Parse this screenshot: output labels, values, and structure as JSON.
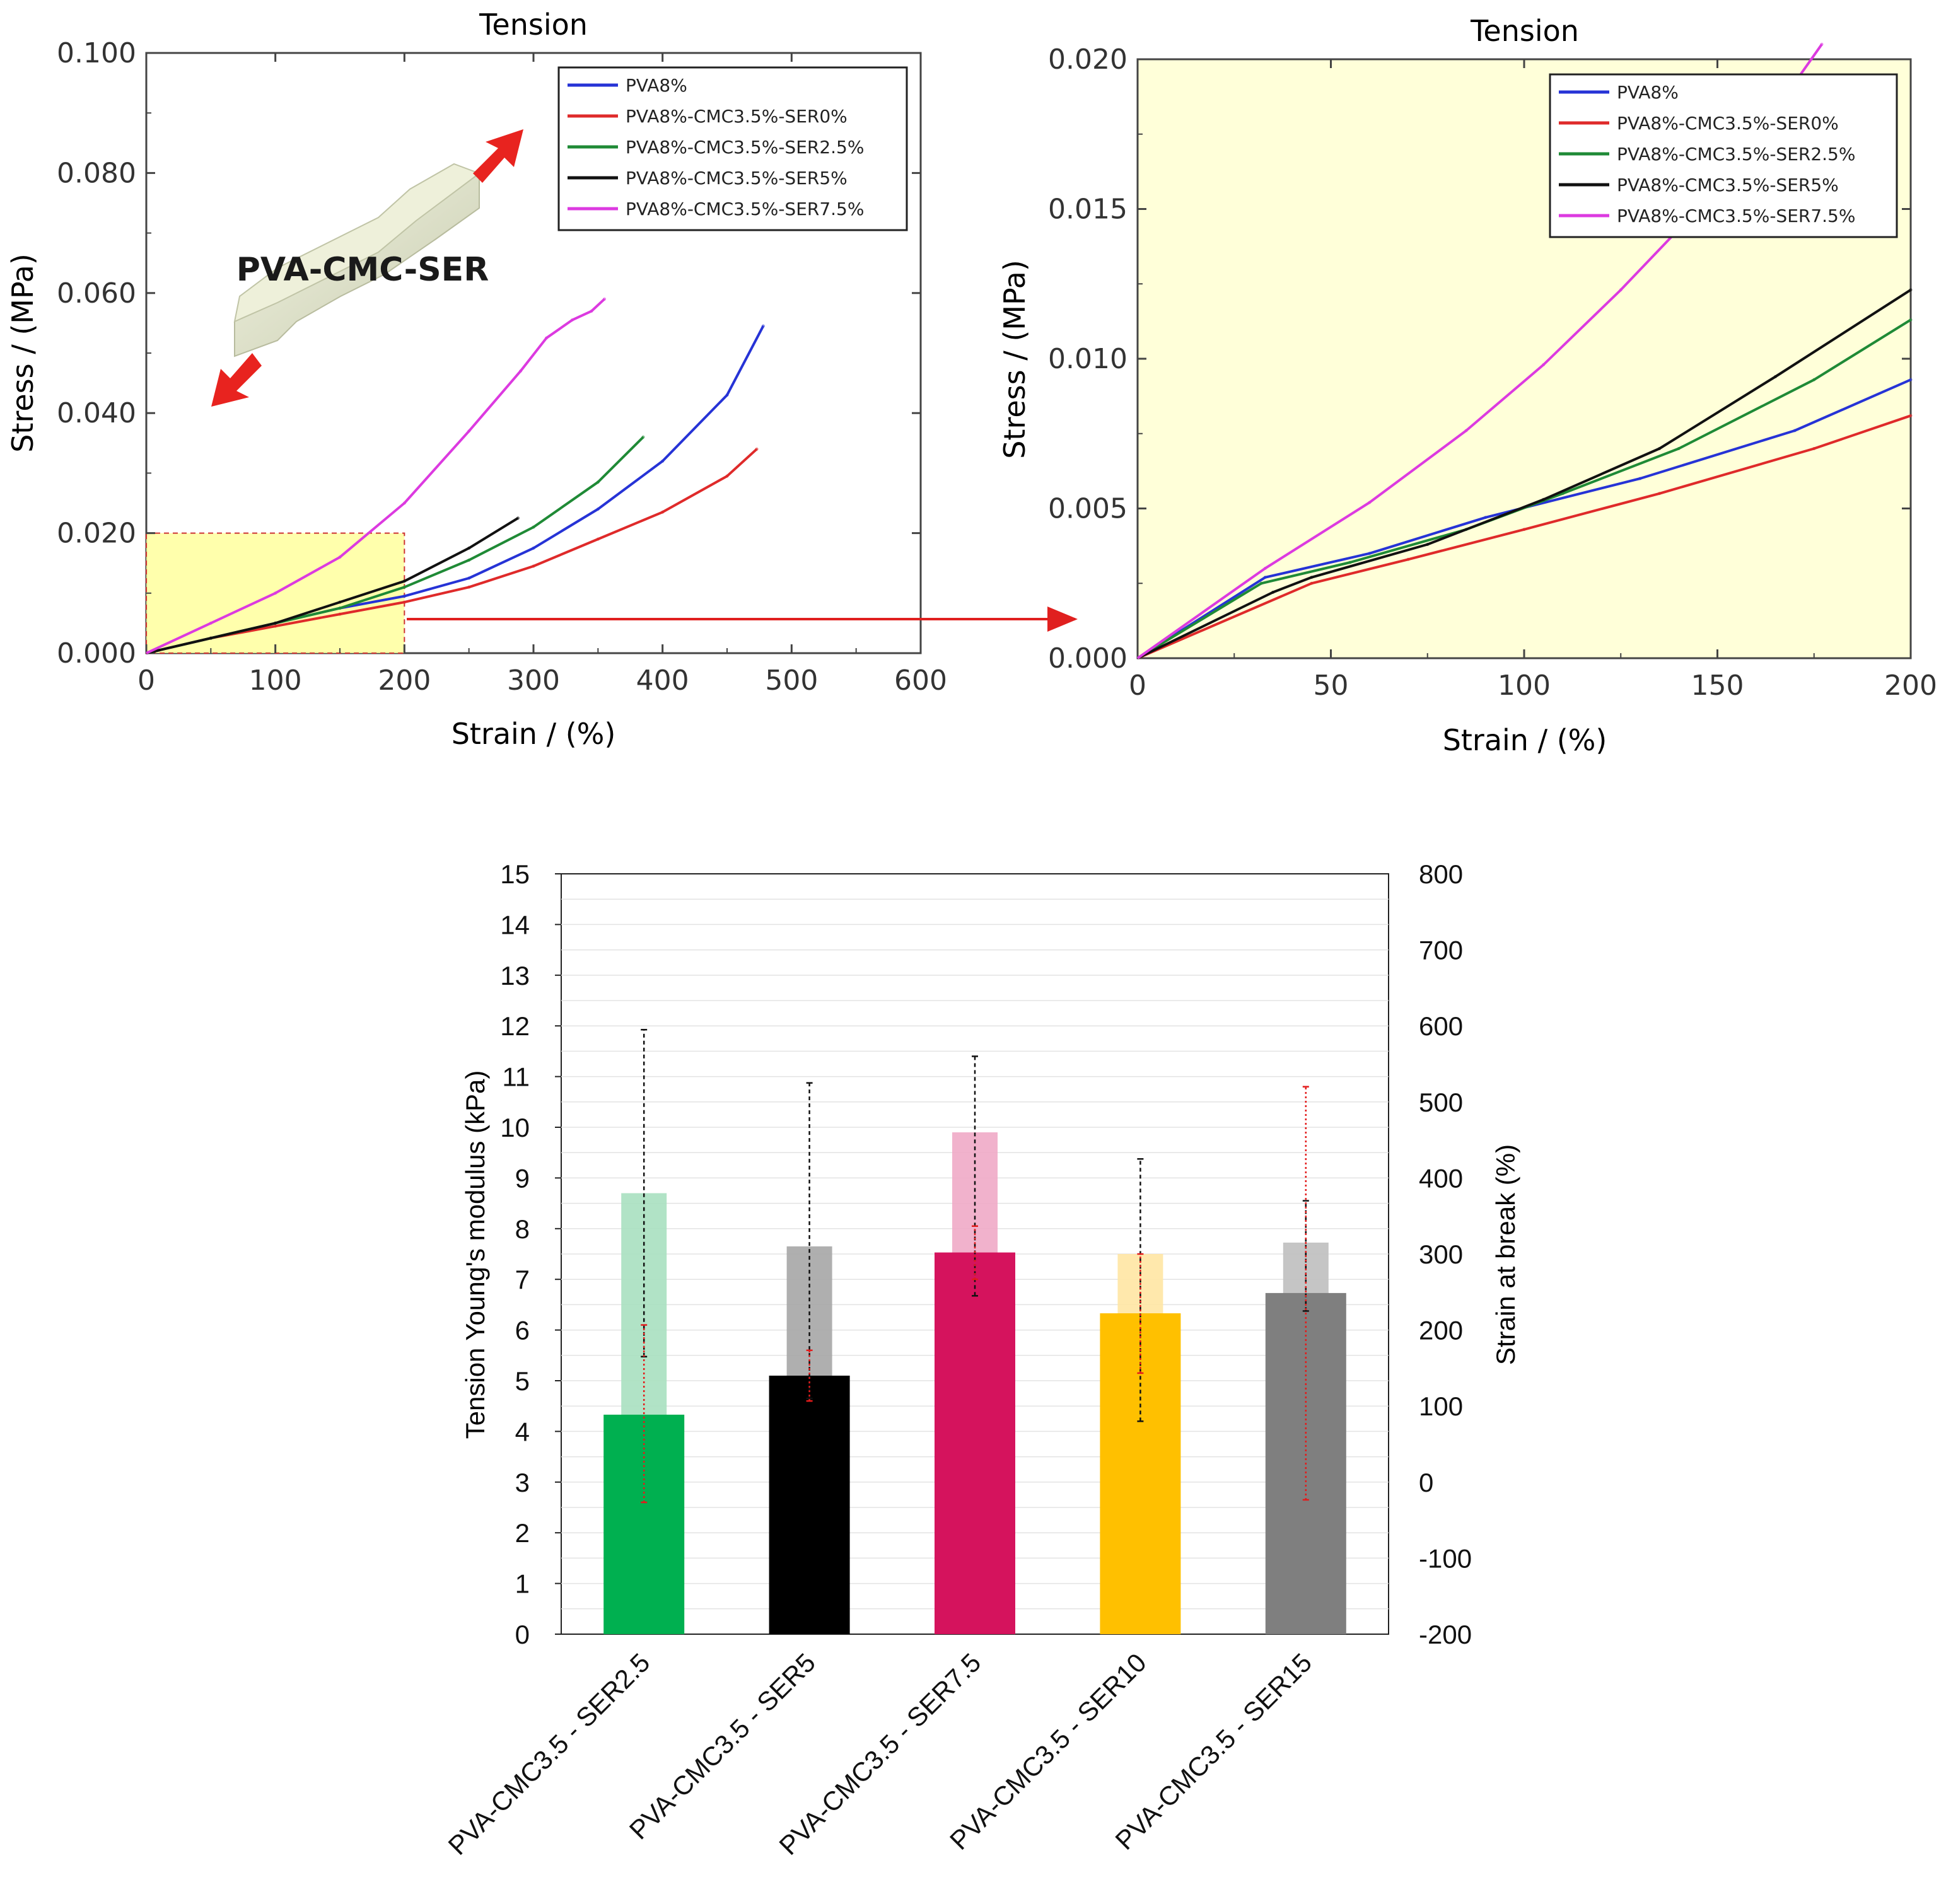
{
  "colors": {
    "blue": "#2633d6",
    "red": "#df2a2a",
    "green": "#1f8a36",
    "black": "#111111",
    "magenta": "#dc3ae0",
    "zoom_bg": "#ffffd9",
    "zoom_box": "#ffff9e",
    "arrow": "#e0201f"
  },
  "icons": {
    "specimen": "dogbone-specimen-icon",
    "arrow": "red-double-arrow-icon"
  },
  "chart_data": [
    {
      "type": "line",
      "title": "Tension",
      "xlabel": "Strain / (%)",
      "ylabel": "Stress / (MPa)",
      "xlim": [
        0,
        600
      ],
      "ylim": [
        0,
        0.1
      ],
      "xticks": [
        "0",
        "100",
        "200",
        "300",
        "400",
        "500",
        "600"
      ],
      "yticks": [
        "0.000",
        "0.020",
        "0.040",
        "0.060",
        "0.080",
        "0.100"
      ],
      "legend_position": "top-right",
      "annotation": "PVA-CMC-SER",
      "series": [
        {
          "name": "PVA8%",
          "color": "#2633d6",
          "x": [
            0,
            50,
            100,
            150,
            200,
            250,
            300,
            350,
            400,
            450,
            478
          ],
          "y": [
            0,
            0.0025,
            0.005,
            0.0075,
            0.0095,
            0.0125,
            0.0175,
            0.024,
            0.032,
            0.043,
            0.0545
          ]
        },
        {
          "name": "PVA8%-CMC3.5%-SER0%",
          "color": "#df2a2a",
          "x": [
            0,
            50,
            100,
            150,
            200,
            250,
            300,
            350,
            400,
            450,
            473
          ],
          "y": [
            0,
            0.0025,
            0.0045,
            0.0065,
            0.0085,
            0.011,
            0.0145,
            0.019,
            0.0235,
            0.0295,
            0.034
          ]
        },
        {
          "name": "PVA8%-CMC3.5%-SER2.5%",
          "color": "#1f8a36",
          "x": [
            0,
            50,
            100,
            150,
            200,
            250,
            300,
            350,
            385
          ],
          "y": [
            0,
            0.0025,
            0.005,
            0.0075,
            0.011,
            0.0155,
            0.021,
            0.0285,
            0.036
          ]
        },
        {
          "name": "PVA8%-CMC3.5%-SER5%",
          "color": "#111111",
          "x": [
            0,
            50,
            100,
            150,
            200,
            250,
            288
          ],
          "y": [
            0,
            0.0025,
            0.005,
            0.0085,
            0.012,
            0.0175,
            0.0225
          ]
        },
        {
          "name": "PVA8%-CMC3.5%-SER7.5%",
          "color": "#dc3ae0",
          "x": [
            0,
            50,
            100,
            150,
            200,
            250,
            290,
            310,
            330,
            345,
            355
          ],
          "y": [
            0,
            0.005,
            0.01,
            0.016,
            0.025,
            0.037,
            0.047,
            0.0525,
            0.0555,
            0.057,
            0.059
          ]
        }
      ]
    },
    {
      "type": "line",
      "title": "Tension",
      "xlabel": "Strain / (%)",
      "ylabel": "Stress / (MPa)",
      "xlim": [
        0,
        200
      ],
      "ylim": [
        0,
        0.02
      ],
      "xticks": [
        "0",
        "50",
        "100",
        "150",
        "200"
      ],
      "yticks": [
        "0.000",
        "0.005",
        "0.010",
        "0.015",
        "0.020"
      ],
      "legend_position": "top-right",
      "series": [
        {
          "name": "PVA8%",
          "color": "#2633d6",
          "x": [
            0,
            33,
            60,
            90,
            130,
            170,
            200
          ],
          "y": [
            0,
            0.0027,
            0.0035,
            0.0047,
            0.006,
            0.0076,
            0.0093
          ]
        },
        {
          "name": "PVA8%-CMC3.5%-SER0%",
          "color": "#df2a2a",
          "x": [
            0,
            45,
            70,
            100,
            135,
            175,
            200
          ],
          "y": [
            0,
            0.0025,
            0.0033,
            0.0043,
            0.0055,
            0.007,
            0.0081
          ]
        },
        {
          "name": "PVA8%-CMC3.5%-SER2.5%",
          "color": "#1f8a36",
          "x": [
            0,
            32,
            55,
            85,
            110,
            140,
            175,
            200
          ],
          "y": [
            0,
            0.0025,
            0.0032,
            0.0043,
            0.0055,
            0.007,
            0.0093,
            0.0113
          ]
        },
        {
          "name": "PVA8%-CMC3.5%-SER5%",
          "color": "#111111",
          "x": [
            0,
            35,
            45,
            75,
            105,
            135,
            165,
            200
          ],
          "y": [
            0,
            0.0022,
            0.0027,
            0.0038,
            0.0053,
            0.007,
            0.0094,
            0.0123
          ]
        },
        {
          "name": "PVA8%-CMC3.5%-SER7.5%",
          "color": "#dc3ae0",
          "x": [
            0,
            33,
            60,
            85,
            105,
            125,
            145,
            165,
            177
          ],
          "y": [
            0,
            0.003,
            0.0052,
            0.0076,
            0.0098,
            0.0123,
            0.015,
            0.0183,
            0.0205
          ]
        }
      ]
    },
    {
      "type": "bar",
      "categories": [
        "PVA-CMC3.5 - SER2.5",
        "PVA-CMC3.5 - SER5",
        "PVA-CMC3.5 - SER7.5",
        "PVA-CMC3.5 - SER10",
        "PVA-CMC3.5 - SER15"
      ],
      "ylabel": "Tension Young's modulus (kPa)",
      "y2label": "Strain at break (%)",
      "ylim": [
        0,
        15
      ],
      "y2lim": [
        -200,
        800
      ],
      "yticks": [
        "0",
        "1",
        "2",
        "3",
        "4",
        "5",
        "6",
        "7",
        "8",
        "9",
        "10",
        "11",
        "12",
        "13",
        "14",
        "15"
      ],
      "y2ticks": [
        "-200",
        "-100",
        "0",
        "100",
        "200",
        "300",
        "400",
        "500",
        "600",
        "700",
        "800"
      ],
      "series": [
        {
          "name": "Tension Young's modulus (kPa)",
          "axis": "left",
          "values": [
            4.33,
            5.1,
            7.53,
            6.33,
            6.73
          ],
          "err_low": [
            2.6,
            4.6,
            7.0,
            5.15,
            2.65
          ],
          "err_high": [
            6.1,
            5.6,
            8.05,
            7.5,
            10.8
          ],
          "colors": [
            "#00b050",
            "#000000",
            "#d5135d",
            "#ffc000",
            "#7f7f7f"
          ]
        },
        {
          "name": "Strain at break (%)",
          "axis": "right",
          "values": [
            380,
            310,
            460,
            300,
            315
          ],
          "err_low": [
            165,
            110,
            245,
            80,
            225
          ],
          "err_high": [
            595,
            525,
            560,
            425,
            370
          ],
          "colors": [
            "#a8e0c0",
            "#a6a6a6",
            "#f0aac6",
            "#ffe6a3",
            "#bfbfbf"
          ]
        }
      ]
    }
  ]
}
